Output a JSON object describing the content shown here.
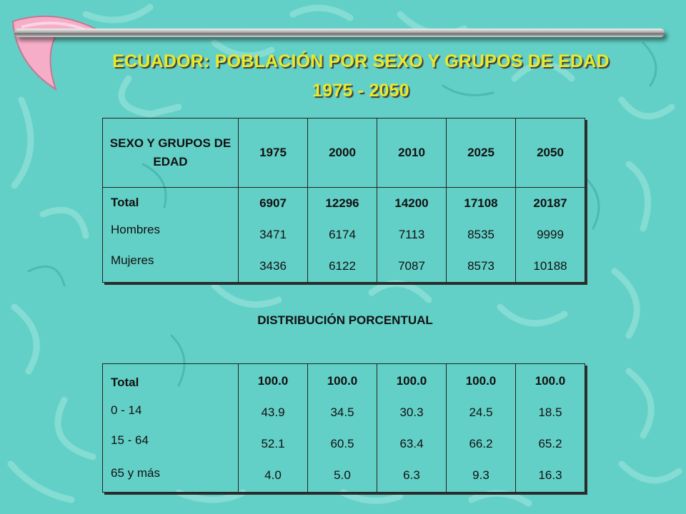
{
  "slide": {
    "title_line1": "ECUADOR: POBLACIÓN POR SEXO Y GRUPOS DE EDAD",
    "title_line2": "1975 - 2050",
    "colors": {
      "background": "#63d0c7",
      "title": "#e9e92a",
      "logo": "#f6aec8"
    }
  },
  "population_table": {
    "header": {
      "label": "SEXO Y GRUPOS DE EDAD",
      "years": [
        "1975",
        "2000",
        "2010",
        "2025",
        "2050"
      ]
    },
    "rows": [
      {
        "label": "Total",
        "bold": true,
        "values": [
          "6907",
          "12296",
          "14200",
          "17108",
          "20187"
        ]
      },
      {
        "label": "Hombres",
        "bold": false,
        "values": [
          "3471",
          "6174",
          "7113",
          "8535",
          "9999"
        ]
      },
      {
        "label": "Mujeres",
        "bold": false,
        "values": [
          "3436",
          "6122",
          "7087",
          "8573",
          "10188"
        ]
      }
    ]
  },
  "distribution_title": "DISTRIBUCIÓN PORCENTUAL",
  "percent_table": {
    "rows": [
      {
        "label": "Total",
        "bold": true,
        "values": [
          "100.0",
          "100.0",
          "100.0",
          "100.0",
          "100.0"
        ]
      },
      {
        "label": "0 - 14",
        "bold": false,
        "values": [
          "43.9",
          "34.5",
          "30.3",
          "24.5",
          "18.5"
        ]
      },
      {
        "label": "15 - 64",
        "bold": false,
        "values": [
          "52.1",
          "60.5",
          "63.4",
          "66.2",
          "65.2"
        ]
      },
      {
        "label": "65 y más",
        "bold": false,
        "values": [
          "4.0",
          "5.0",
          "6.3",
          "9.3",
          "16.3"
        ]
      }
    ]
  }
}
